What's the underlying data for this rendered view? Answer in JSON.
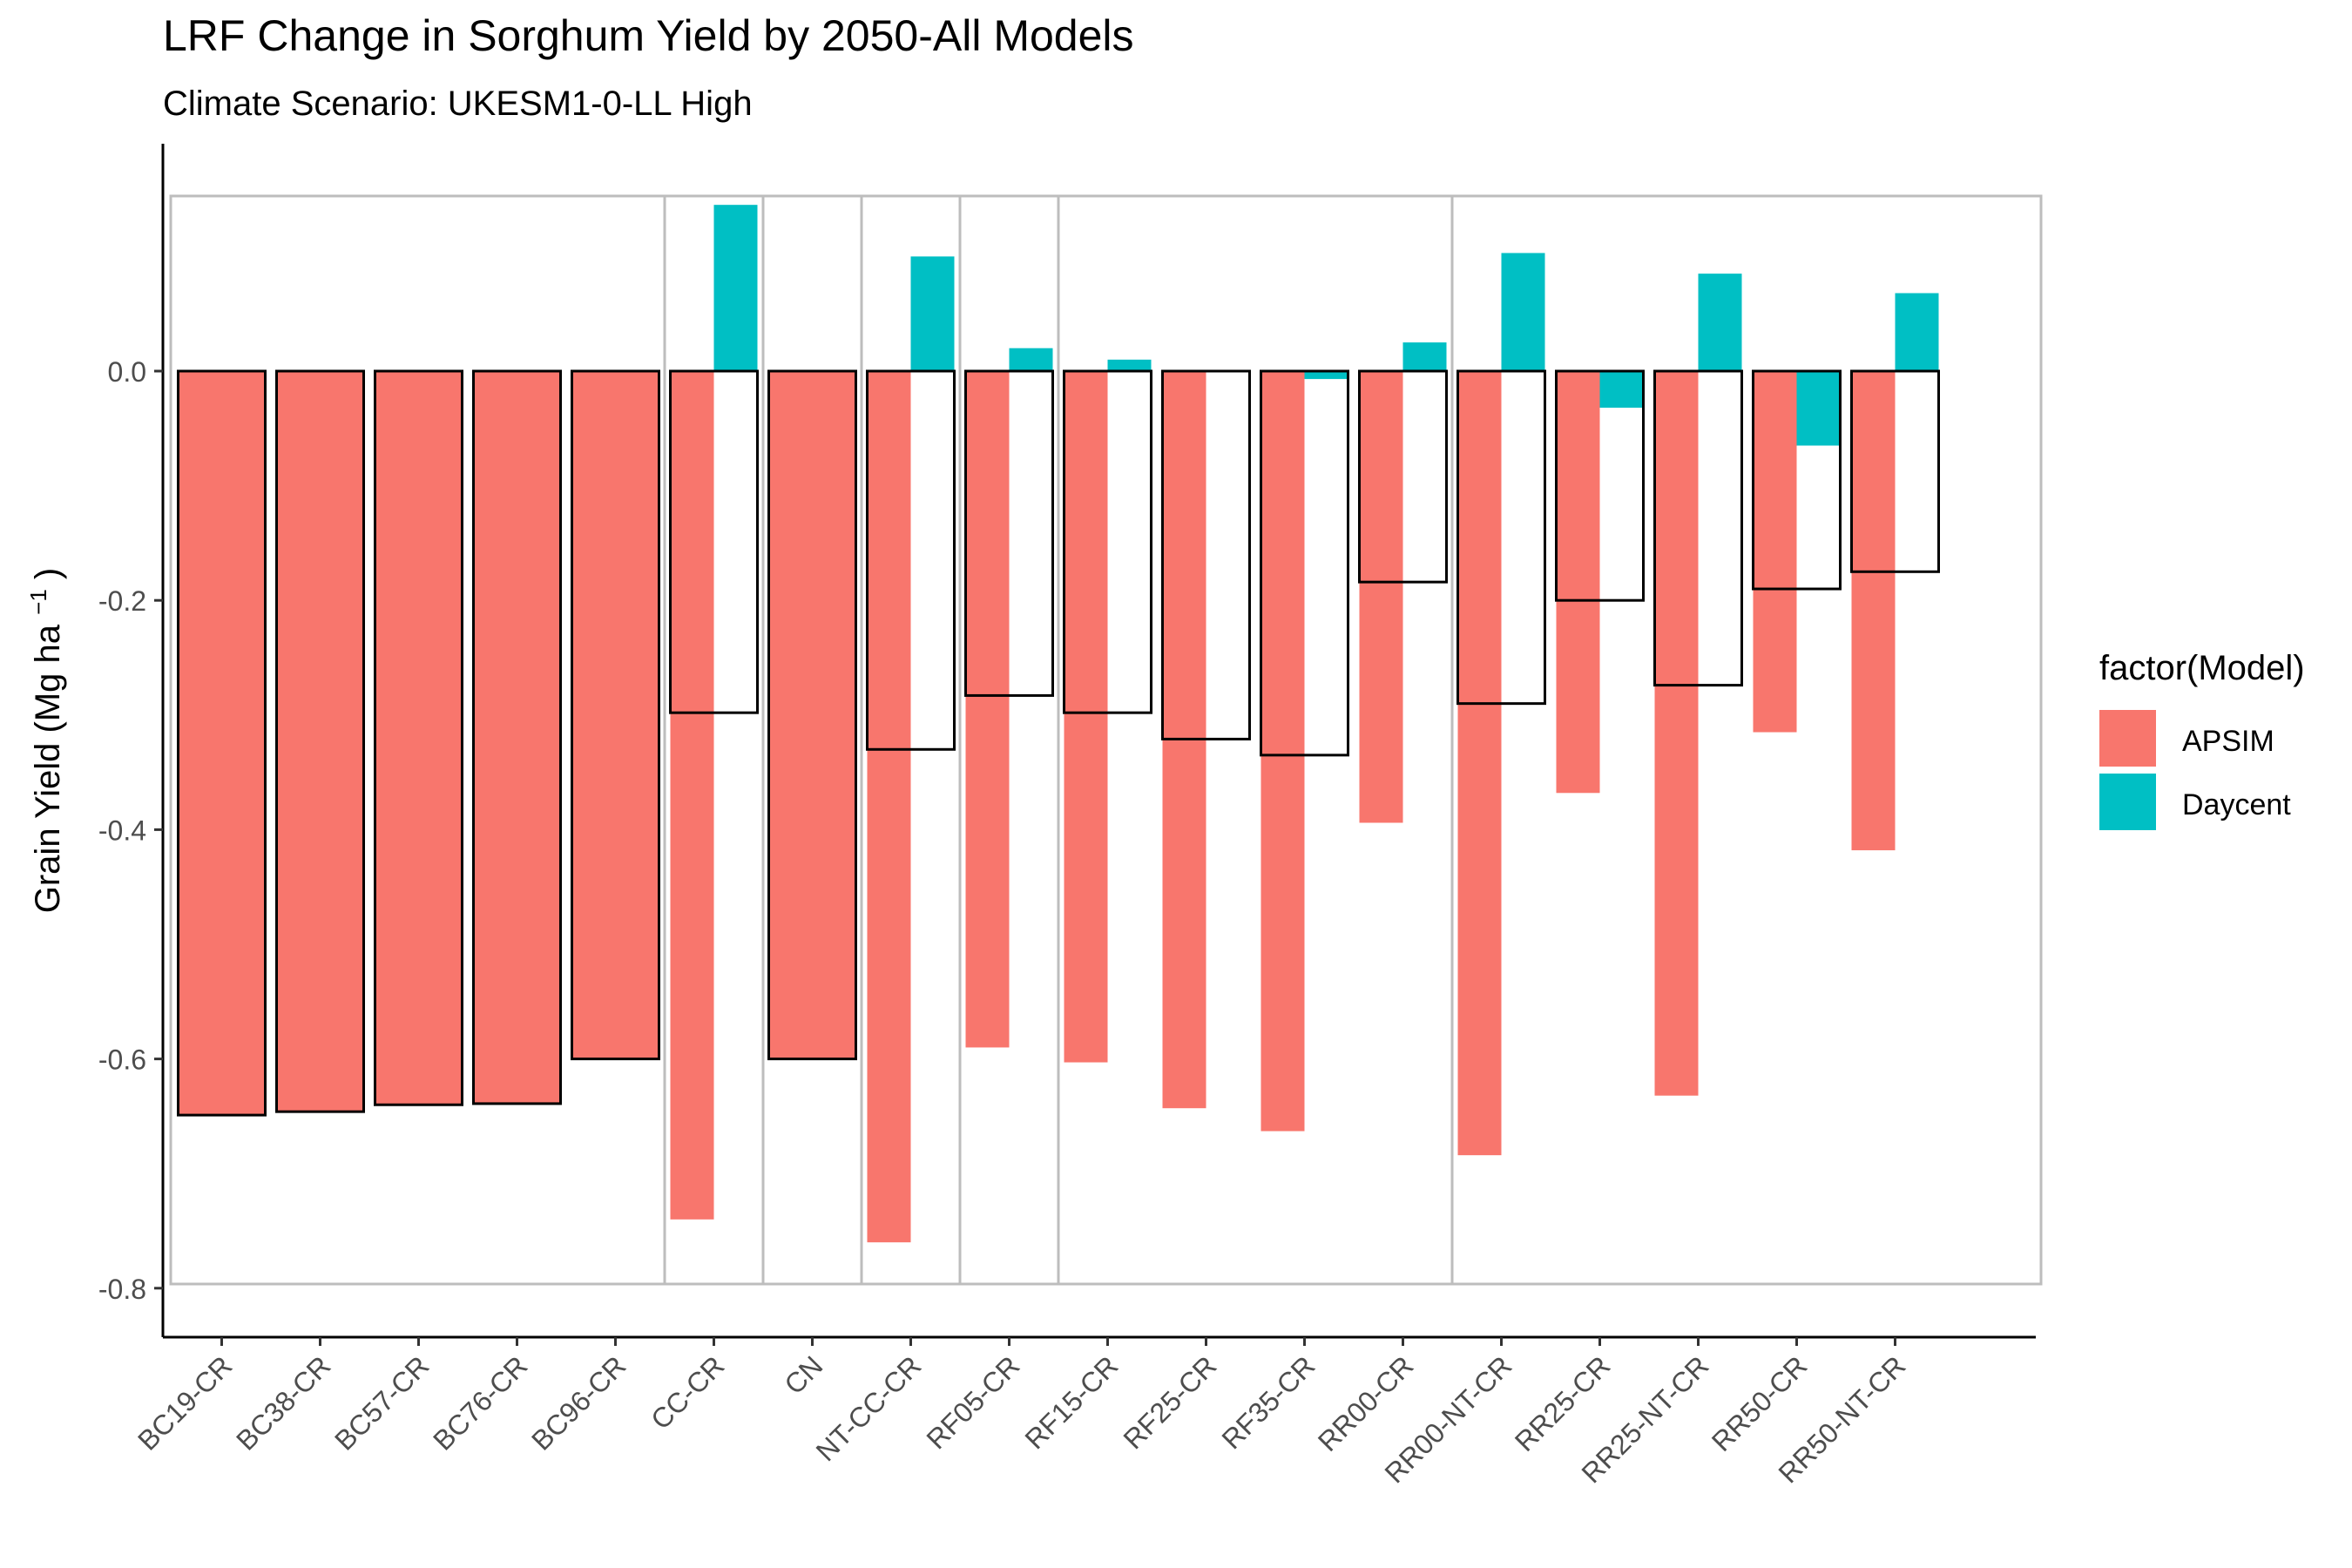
{
  "chart_data": {
    "type": "bar",
    "title": "LRF Change in Sorghum Yield by 2050-All Models",
    "subtitle": "Climate Scenario: UKESM1-0-LL High",
    "ylabel": "Grain Yield (Mg ha",
    "ylabel_sup": "−1",
    "ylabel_close": ")",
    "xlabel": "",
    "ylim": [
      -0.8,
      0.15
    ],
    "y_ticks": [
      0.0,
      -0.2,
      -0.4,
      -0.6,
      -0.8
    ],
    "y_tick_labels": [
      "0.0",
      "-0.2",
      "-0.4",
      "-0.6",
      "-0.8"
    ],
    "legend": {
      "title": "factor(Model)",
      "position": "right",
      "entries": [
        {
          "name": "APSIM",
          "color": "#F8766D"
        },
        {
          "name": "Daycent",
          "color": "#00BFC4"
        }
      ]
    },
    "categories": [
      "BC19-CR",
      "BC38-CR",
      "BC57-CR",
      "BC76-CR",
      "BC96-CR",
      "CC-CR",
      "CN",
      "NT-CC-CR",
      "RF05-CR",
      "RF15-CR",
      "RF25-CR",
      "RF35-CR",
      "RR00-CR",
      "RR00-NT-CR",
      "RR25-CR",
      "RR25-NT-CR",
      "RR50-CR",
      "RR50-NT-CR"
    ],
    "series": [
      {
        "name": "APSIM",
        "color": "#F8766D",
        "values": [
          null,
          null,
          null,
          null,
          null,
          -0.74,
          null,
          -0.76,
          -0.59,
          -0.603,
          -0.643,
          -0.663,
          -0.394,
          -0.684,
          -0.368,
          -0.632,
          -0.315,
          -0.418
        ]
      },
      {
        "name": "Daycent",
        "color": "#00BFC4",
        "values": [
          null,
          null,
          null,
          null,
          null,
          0.145,
          null,
          0.1,
          0.02,
          0.01,
          null,
          -0.007,
          0.025,
          0.103,
          -0.032,
          0.085,
          -0.065,
          0.068
        ]
      }
    ],
    "outlined_values": [
      -0.649,
      -0.646,
      -0.64,
      -0.639,
      -0.6,
      -0.298,
      -0.6,
      -0.33,
      -0.283,
      -0.298,
      -0.321,
      -0.335,
      -0.184,
      -0.29,
      -0.2,
      -0.274,
      -0.19,
      -0.175
    ],
    "outlined_full_fill": [
      true,
      true,
      true,
      true,
      true,
      false,
      true,
      false,
      false,
      false,
      false,
      false,
      false,
      false,
      false,
      false,
      false,
      false
    ],
    "grid": false,
    "panel_lines_after": [
      "BC96-CR",
      "CC-CR",
      "CN",
      "NT-CC-CR",
      "RF05-CR",
      "RR00-CR"
    ]
  },
  "colors": {
    "apsim": "#F8766D",
    "daycent": "#00BFC4",
    "outline": "#000000",
    "panel": "#bdbdbd",
    "text": "#000000",
    "tick_text": "#4d4d4d"
  }
}
